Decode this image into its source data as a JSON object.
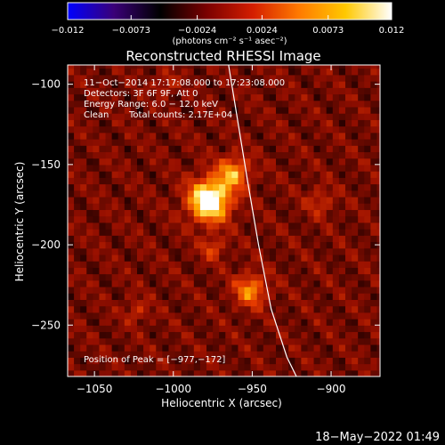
{
  "chart_data": {
    "type": "heatmap",
    "title": "Reconstructed RHESSI Image",
    "xlabel": "Heliocentric X (arcsec)",
    "ylabel": "Heliocentric Y (arcsec)",
    "xlim": [
      -1067,
      -869
    ],
    "ylim": [
      -282,
      -88
    ],
    "x_ticks": [
      -1050,
      -1000,
      -950,
      -900
    ],
    "x_tick_labels": [
      "−1050",
      "−1000",
      "−950",
      "−900"
    ],
    "y_ticks": [
      -100,
      -150,
      -200,
      -250
    ],
    "y_tick_labels": [
      "−100",
      "−150",
      "−200",
      "−250"
    ],
    "colorbar": {
      "range": [
        -0.012,
        0.012
      ],
      "ticks": [
        -0.012,
        -0.0073,
        -0.0024,
        0.0024,
        0.0073,
        0.012
      ],
      "tick_labels": [
        "−0.012",
        "−0.0073",
        "−0.0024",
        "0.0024",
        "0.0073",
        "0.012"
      ],
      "unit_label": "(photons cm⁻² s⁻¹ asec⁻²)",
      "colors": [
        "#0000ff",
        "#3a0078",
        "#000000",
        "#7a0000",
        "#d41e00",
        "#ff7a00",
        "#ffc800",
        "#ffffff"
      ]
    },
    "annotations": [
      "11−Oct−2014 17:17:08.000 to 17:23:08.000",
      "Detectors: 3F 6F 9F, Att 0",
      "Energy Range: 6.0 − 12.0 keV",
      "Clean",
      "Total counts: 2.17E+04"
    ],
    "peak_label": "Position of Peak = [−977,−172]",
    "peak": [
      -977,
      -172
    ],
    "sources": [
      {
        "x": -977,
        "y": -172,
        "sigma": 9,
        "amp": 1.0
      },
      {
        "x": -962,
        "y": -155,
        "sigma": 7,
        "amp": 0.55
      },
      {
        "x": -951,
        "y": -228,
        "sigma": 7,
        "amp": 0.5
      },
      {
        "x": -975,
        "y": -202,
        "sigma": 5,
        "amp": 0.3
      },
      {
        "x": -1023,
        "y": -241,
        "sigma": 5,
        "amp": 0.22
      },
      {
        "x": -907,
        "y": -173,
        "sigma": 6,
        "amp": 0.22
      },
      {
        "x": -1005,
        "y": -100,
        "sigma": 5,
        "amp": 0.2
      }
    ],
    "limb": [
      [
        -965,
        -88
      ],
      [
        -958,
        -130
      ],
      [
        -953,
        -160
      ],
      [
        -946,
        -200
      ],
      [
        -938,
        -240
      ],
      [
        -928,
        -270
      ],
      [
        -922,
        -282
      ]
    ],
    "grid": false
  },
  "footer": {
    "timestamp": "18−May−2022 01:49"
  }
}
